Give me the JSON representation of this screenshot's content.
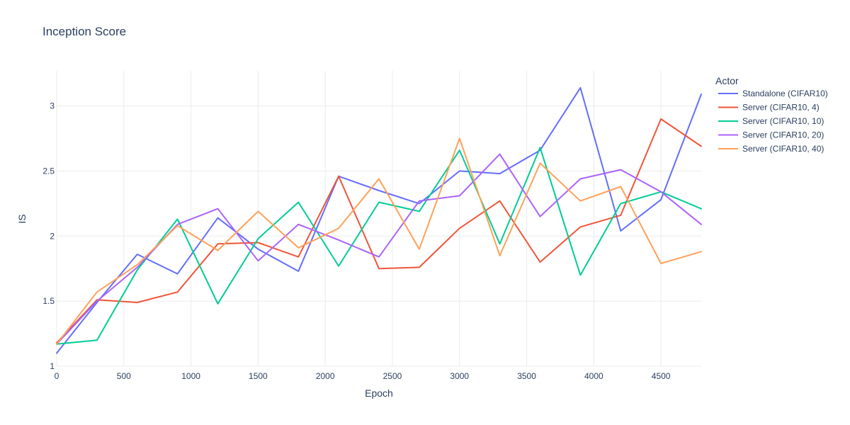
{
  "chart_data": {
    "type": "line",
    "title": "Inception Score",
    "xlabel": "Epoch",
    "ylabel": "IS",
    "xlim": [
      0,
      4800
    ],
    "ylim": [
      1,
      3.27
    ],
    "x_ticks": [
      0,
      500,
      1000,
      1500,
      2000,
      2500,
      3000,
      3500,
      4000,
      4500
    ],
    "y_ticks": [
      1,
      1.5,
      2,
      2.5,
      3
    ],
    "grid": true,
    "legend_placement": "top-right",
    "legend_title": "Actor",
    "x": [
      0,
      300,
      600,
      900,
      1200,
      1500,
      1800,
      2100,
      2400,
      2700,
      3000,
      3300,
      3600,
      3900,
      4200,
      4500,
      4800
    ],
    "series": [
      {
        "name": "Standalone (CIFAR10)",
        "color": "#636efa",
        "values": [
          1.1,
          1.49,
          1.86,
          1.71,
          2.14,
          1.9,
          1.73,
          2.46,
          2.35,
          2.25,
          2.5,
          2.48,
          2.66,
          3.14,
          2.04,
          2.28,
          3.09
        ]
      },
      {
        "name": "Server (CIFAR10, 4)",
        "color": "#ef553b",
        "values": [
          1.18,
          1.51,
          1.49,
          1.57,
          1.94,
          1.95,
          1.84,
          2.46,
          1.75,
          1.76,
          2.06,
          2.27,
          1.8,
          2.07,
          2.16,
          2.9,
          2.69
        ]
      },
      {
        "name": "Server (CIFAR10, 10)",
        "color": "#00cc96",
        "values": [
          1.17,
          1.2,
          1.74,
          2.13,
          1.48,
          1.98,
          2.26,
          1.77,
          2.26,
          2.19,
          2.66,
          1.94,
          2.68,
          1.7,
          2.25,
          2.34,
          2.21
        ]
      },
      {
        "name": "Server (CIFAR10, 20)",
        "color": "#ab63fa",
        "values": [
          1.17,
          1.5,
          1.76,
          2.09,
          2.21,
          1.81,
          2.09,
          1.97,
          1.84,
          2.27,
          2.31,
          2.63,
          2.15,
          2.44,
          2.51,
          2.34,
          2.09
        ]
      },
      {
        "name": "Server (CIFAR10, 40)",
        "color": "#ffa15a",
        "values": [
          1.17,
          1.57,
          1.78,
          2.08,
          1.89,
          2.19,
          1.91,
          2.06,
          2.44,
          1.9,
          2.75,
          1.85,
          2.56,
          2.27,
          2.38,
          1.79,
          1.88
        ]
      }
    ]
  }
}
